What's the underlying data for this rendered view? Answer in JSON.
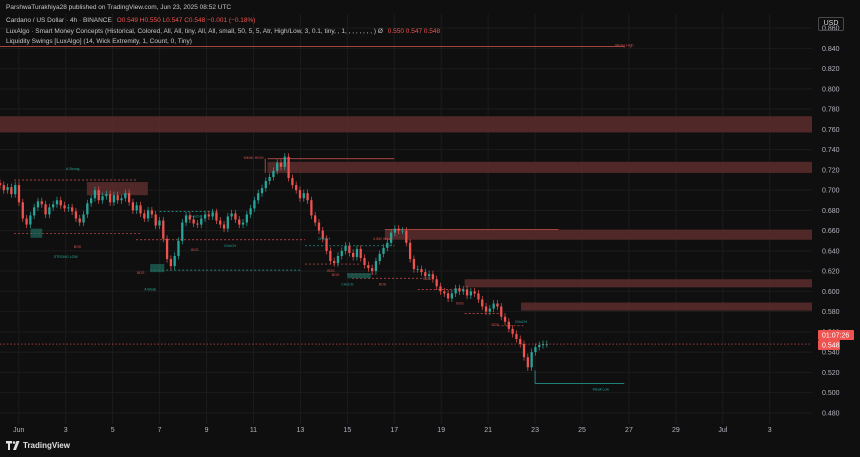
{
  "header": {
    "publisher": "ParshwaTurakhiya28 published on TradingView.com, Jun 23, 2025 08:52 UTC",
    "symbol": "Cardano / US Dollar · 4h · BINANCE",
    "ohlc": "O0.549  H0.550  L0.547  C0.548  −0.001 (−0.18%)",
    "indicator1": "LuxAlgo · Smart Money Concepts (Historical, Colored, All, All, tiny, All, All, small, 50, 5, 5, Atr, High/Low, 3, 0.1, tiny, , 1, , , , , , , , ) Ø",
    "indicator1_values": "0.550  0.547  0.548",
    "indicator2": "Liquidity Swings [LuxAlgo] (14, Wick Extremity, 1, Count, 0, Tiny)"
  },
  "currency_button": "USD",
  "branding": "TradingView",
  "chart_data": {
    "type": "candlestick",
    "symbol": "ADAUSD",
    "timeframe": "4h",
    "y_ticks": [
      0.86,
      0.84,
      0.82,
      0.8,
      0.78,
      0.76,
      0.74,
      0.72,
      0.7,
      0.68,
      0.66,
      0.64,
      0.62,
      0.6,
      0.58,
      0.56,
      0.54,
      0.52,
      0.5,
      0.48
    ],
    "y_tick_labels": [
      "0.860",
      "0.840",
      "0.820",
      "0.800",
      "0.780",
      "0.760",
      "0.740",
      "0.720",
      "0.700",
      "0.680",
      "0.660",
      "0.640",
      "0.620",
      "0.600",
      "0.580",
      "0.560",
      "0.540",
      "0.520",
      "0.500",
      "0.480"
    ],
    "ylim": [
      0.469,
      0.874
    ],
    "x_ticks": [
      {
        "label": "Jun",
        "day": 1
      },
      {
        "label": "3",
        "day": 3
      },
      {
        "label": "5",
        "day": 5
      },
      {
        "label": "7",
        "day": 7
      },
      {
        "label": "9",
        "day": 9
      },
      {
        "label": "11",
        "day": 11
      },
      {
        "label": "13",
        "day": 13
      },
      {
        "label": "15",
        "day": 15
      },
      {
        "label": "17",
        "day": 17
      },
      {
        "label": "19",
        "day": 19
      },
      {
        "label": "21",
        "day": 21
      },
      {
        "label": "23",
        "day": 23
      },
      {
        "label": "25",
        "day": 25
      },
      {
        "label": "27",
        "day": 27
      },
      {
        "label": "29",
        "day": 29
      },
      {
        "label": "Jul",
        "day": 31
      },
      {
        "label": "3",
        "day": 33
      }
    ],
    "xlim_days": [
      0.2,
      34.8
    ],
    "current_price": "0.548",
    "countdown": "01:07:26",
    "closes": [
      0.705,
      0.7,
      0.703,
      0.696,
      0.705,
      0.688,
      0.672,
      0.666,
      0.675,
      0.683,
      0.689,
      0.686,
      0.676,
      0.683,
      0.686,
      0.69,
      0.685,
      0.682,
      0.683,
      0.679,
      0.672,
      0.668,
      0.676,
      0.687,
      0.692,
      0.7,
      0.69,
      0.694,
      0.696,
      0.688,
      0.695,
      0.69,
      0.692,
      0.697,
      0.688,
      0.68,
      0.685,
      0.677,
      0.672,
      0.68,
      0.676,
      0.665,
      0.67,
      0.652,
      0.632,
      0.625,
      0.635,
      0.65,
      0.668,
      0.675,
      0.671,
      0.667,
      0.666,
      0.672,
      0.676,
      0.674,
      0.678,
      0.67,
      0.666,
      0.662,
      0.674,
      0.677,
      0.671,
      0.666,
      0.668,
      0.676,
      0.682,
      0.69,
      0.697,
      0.702,
      0.709,
      0.713,
      0.719,
      0.727,
      0.723,
      0.733,
      0.712,
      0.705,
      0.7,
      0.692,
      0.697,
      0.69,
      0.675,
      0.668,
      0.66,
      0.652,
      0.64,
      0.63,
      0.628,
      0.635,
      0.64,
      0.645,
      0.638,
      0.634,
      0.642,
      0.633,
      0.626,
      0.623,
      0.62,
      0.63,
      0.637,
      0.643,
      0.648,
      0.658,
      0.662,
      0.66,
      0.66,
      0.648,
      0.632,
      0.622,
      0.622,
      0.619,
      0.615,
      0.617,
      0.612,
      0.605,
      0.6,
      0.598,
      0.593,
      0.598,
      0.603,
      0.6,
      0.602,
      0.596,
      0.6,
      0.598,
      0.592,
      0.585,
      0.58,
      0.583,
      0.588,
      0.585,
      0.575,
      0.57,
      0.563,
      0.558,
      0.553,
      0.548,
      0.535,
      0.525,
      0.54,
      0.545,
      0.547,
      0.548,
      0.548
    ],
    "zones": [
      {
        "type": "bearish_ob",
        "top": 0.773,
        "bottom": 0.757
      },
      {
        "type": "bearish_ob",
        "top": 0.728,
        "bottom": 0.717
      },
      {
        "type": "bearish_ob",
        "top": 0.661,
        "bottom": 0.651
      },
      {
        "type": "bearish_ob",
        "top": 0.612,
        "bottom": 0.604
      },
      {
        "type": "bearish_ob",
        "top": 0.589,
        "bottom": 0.581
      },
      {
        "type": "bearish_ob",
        "top": 0.708,
        "bottom": 0.695
      }
    ],
    "annotations": [
      {
        "text": "Strong High",
        "day": 26.8,
        "price": 0.842
      },
      {
        "text": "Weak Low",
        "day": 25.8,
        "price": 0.502
      },
      {
        "text": "WEAK HIGH",
        "day": 11.0,
        "price": 0.731
      },
      {
        "text": "STRONG LOW",
        "day": 3.0,
        "price": 0.633
      },
      {
        "text": "0.552 Weak",
        "day": 16.5,
        "price": 0.651
      },
      {
        "text": "A Strong",
        "day": 3.3,
        "price": 0.72
      },
      {
        "text": "BOS",
        "day": 6.2,
        "price": 0.617
      },
      {
        "text": "BOS",
        "day": 3.5,
        "price": 0.643
      },
      {
        "text": "BOS",
        "day": 8.5,
        "price": 0.64
      },
      {
        "text": "BOS",
        "day": 14.3,
        "price": 0.619
      },
      {
        "text": "BOS",
        "day": 14.5,
        "price": 0.615
      },
      {
        "text": "BOS",
        "day": 16.5,
        "price": 0.606
      },
      {
        "text": "BOS",
        "day": 18.4,
        "price": 0.611
      },
      {
        "text": "BOS",
        "day": 19.8,
        "price": 0.587
      },
      {
        "text": "BOS",
        "day": 21.3,
        "price": 0.566
      },
      {
        "text": "CHoCH",
        "day": 8.5,
        "price": 0.673
      },
      {
        "text": "CHoCH",
        "day": 10.0,
        "price": 0.644
      },
      {
        "text": "CHoCH",
        "day": 14.0,
        "price": 0.651
      },
      {
        "text": "CHoCH",
        "day": 15.0,
        "price": 0.606
      },
      {
        "text": "CHoCH",
        "day": 22.4,
        "price": 0.569
      },
      {
        "text": "A Weak",
        "day": 6.6,
        "price": 0.601
      }
    ]
  },
  "colors": {
    "up": "#26a69a",
    "down": "#ef5350",
    "zone": "#5c2d2d",
    "grid": "#1c1c1c",
    "axis_text": "#b2b5be",
    "dash_red": "#d9534f",
    "dash_green": "#26a69a"
  }
}
